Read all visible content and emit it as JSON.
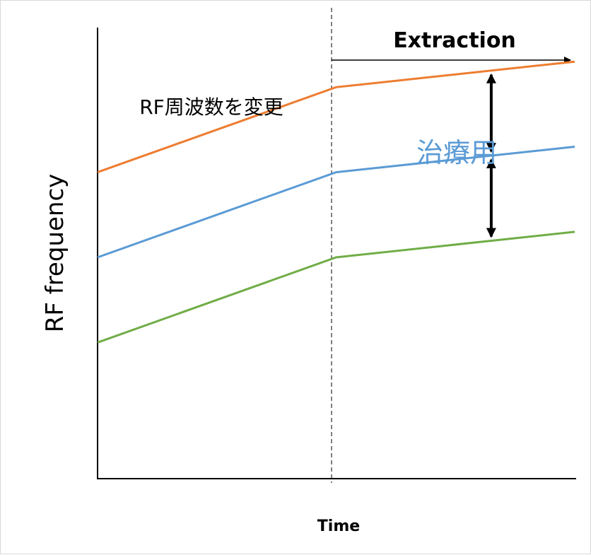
{
  "chart_data": {
    "type": "line",
    "xlabel": "Time",
    "ylabel": "RF frequency",
    "grid": false,
    "legend": "none",
    "x": [
      0,
      1,
      2
    ],
    "series": [
      {
        "values": [
          3.6,
          4.6,
          4.9
        ],
        "color": "#ed7d31"
      },
      {
        "values": [
          2.6,
          3.6,
          3.9
        ],
        "color": "#5b9bd5"
      },
      {
        "values": [
          1.6,
          2.6,
          2.9
        ],
        "color": "#70ad47"
      }
    ],
    "xlim": [
      0,
      2
    ],
    "ylim": [
      0,
      5.3
    ],
    "phase_boundary_x": 1,
    "annotations": {
      "extraction": "Extraction",
      "change_rf": "RF周波数を変更",
      "treatment": "治療用"
    },
    "arrow_x": 1.65,
    "colors": {
      "axis": "#000000",
      "treatment_label": "#5b9bd5"
    }
  }
}
